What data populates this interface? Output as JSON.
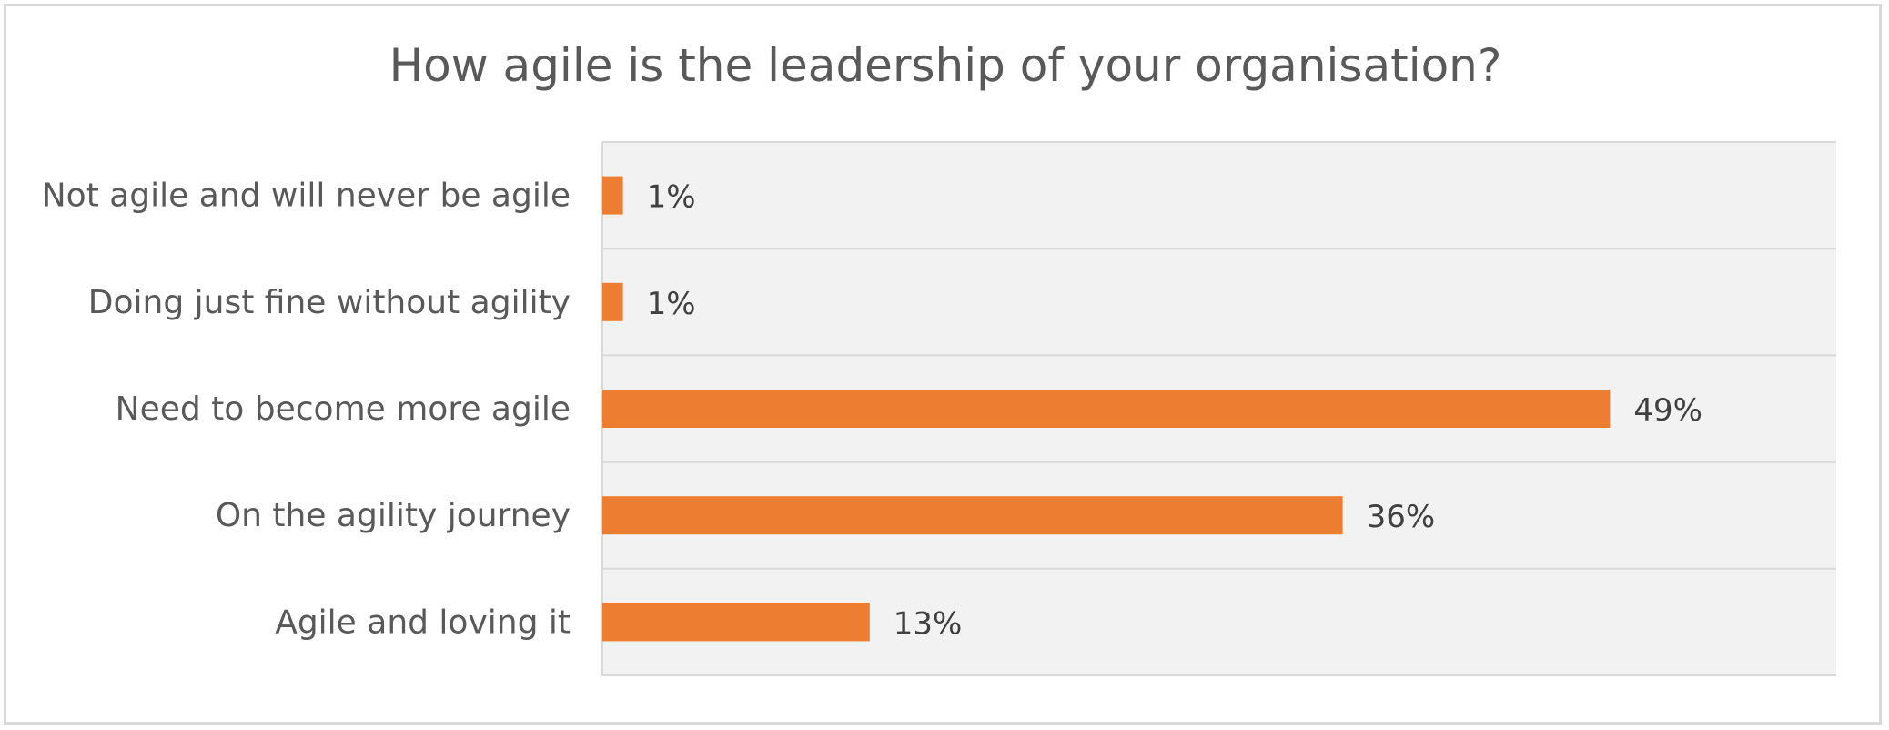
{
  "chart_data": {
    "type": "bar",
    "orientation": "horizontal",
    "title": "How agile is the leadership of your organisation?",
    "categories": [
      "Not agile and will never be agile",
      "Doing just fine without agility",
      "Need to become more agile",
      "On the agility journey",
      "Agile and loving it"
    ],
    "values": [
      1,
      1,
      49,
      36,
      13
    ],
    "data_labels": [
      "1%",
      "1%",
      "49%",
      "36%",
      "13%"
    ],
    "unit": "%",
    "xlim": [
      0,
      60
    ],
    "grid": true,
    "legend": "none",
    "colors": {
      "bar": "#ED7D31",
      "plot_background": "#F2F2F2",
      "gridline": "#D9D9D9",
      "text": "#595959"
    }
  }
}
